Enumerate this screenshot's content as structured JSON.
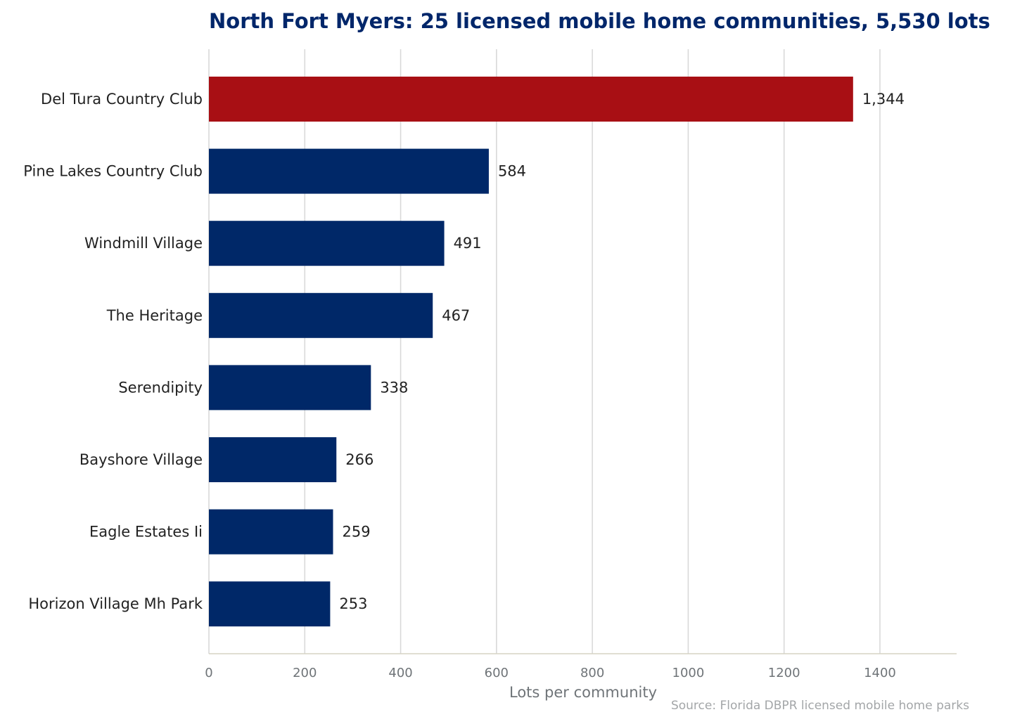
{
  "chart_data": {
    "type": "bar",
    "orientation": "horizontal",
    "title": "North Fort Myers: 25 licensed mobile home communities, 5,530 lots",
    "xlabel": "Lots per community",
    "ylabel": "",
    "source": "Source: Florida DBPR licensed mobile home parks",
    "xlim": [
      0,
      1560
    ],
    "xticks": [
      0,
      200,
      400,
      600,
      800,
      1000,
      1200,
      1400
    ],
    "categories": [
      "Del Tura Country Club",
      "Pine Lakes Country Club",
      "Windmill Village",
      "The Heritage",
      "Serendipity",
      "Bayshore Village",
      "Eagle Estates Ii",
      "Horizon Village Mh Park"
    ],
    "values": [
      1344,
      584,
      491,
      467,
      338,
      266,
      259,
      253
    ],
    "value_labels": [
      "1,344",
      "584",
      "491",
      "467",
      "338",
      "266",
      "259",
      "253"
    ],
    "colors": [
      "#a80f14",
      "#002868",
      "#002868",
      "#002868",
      "#002868",
      "#002868",
      "#002868",
      "#002868"
    ],
    "grid": true,
    "legend": "none"
  }
}
